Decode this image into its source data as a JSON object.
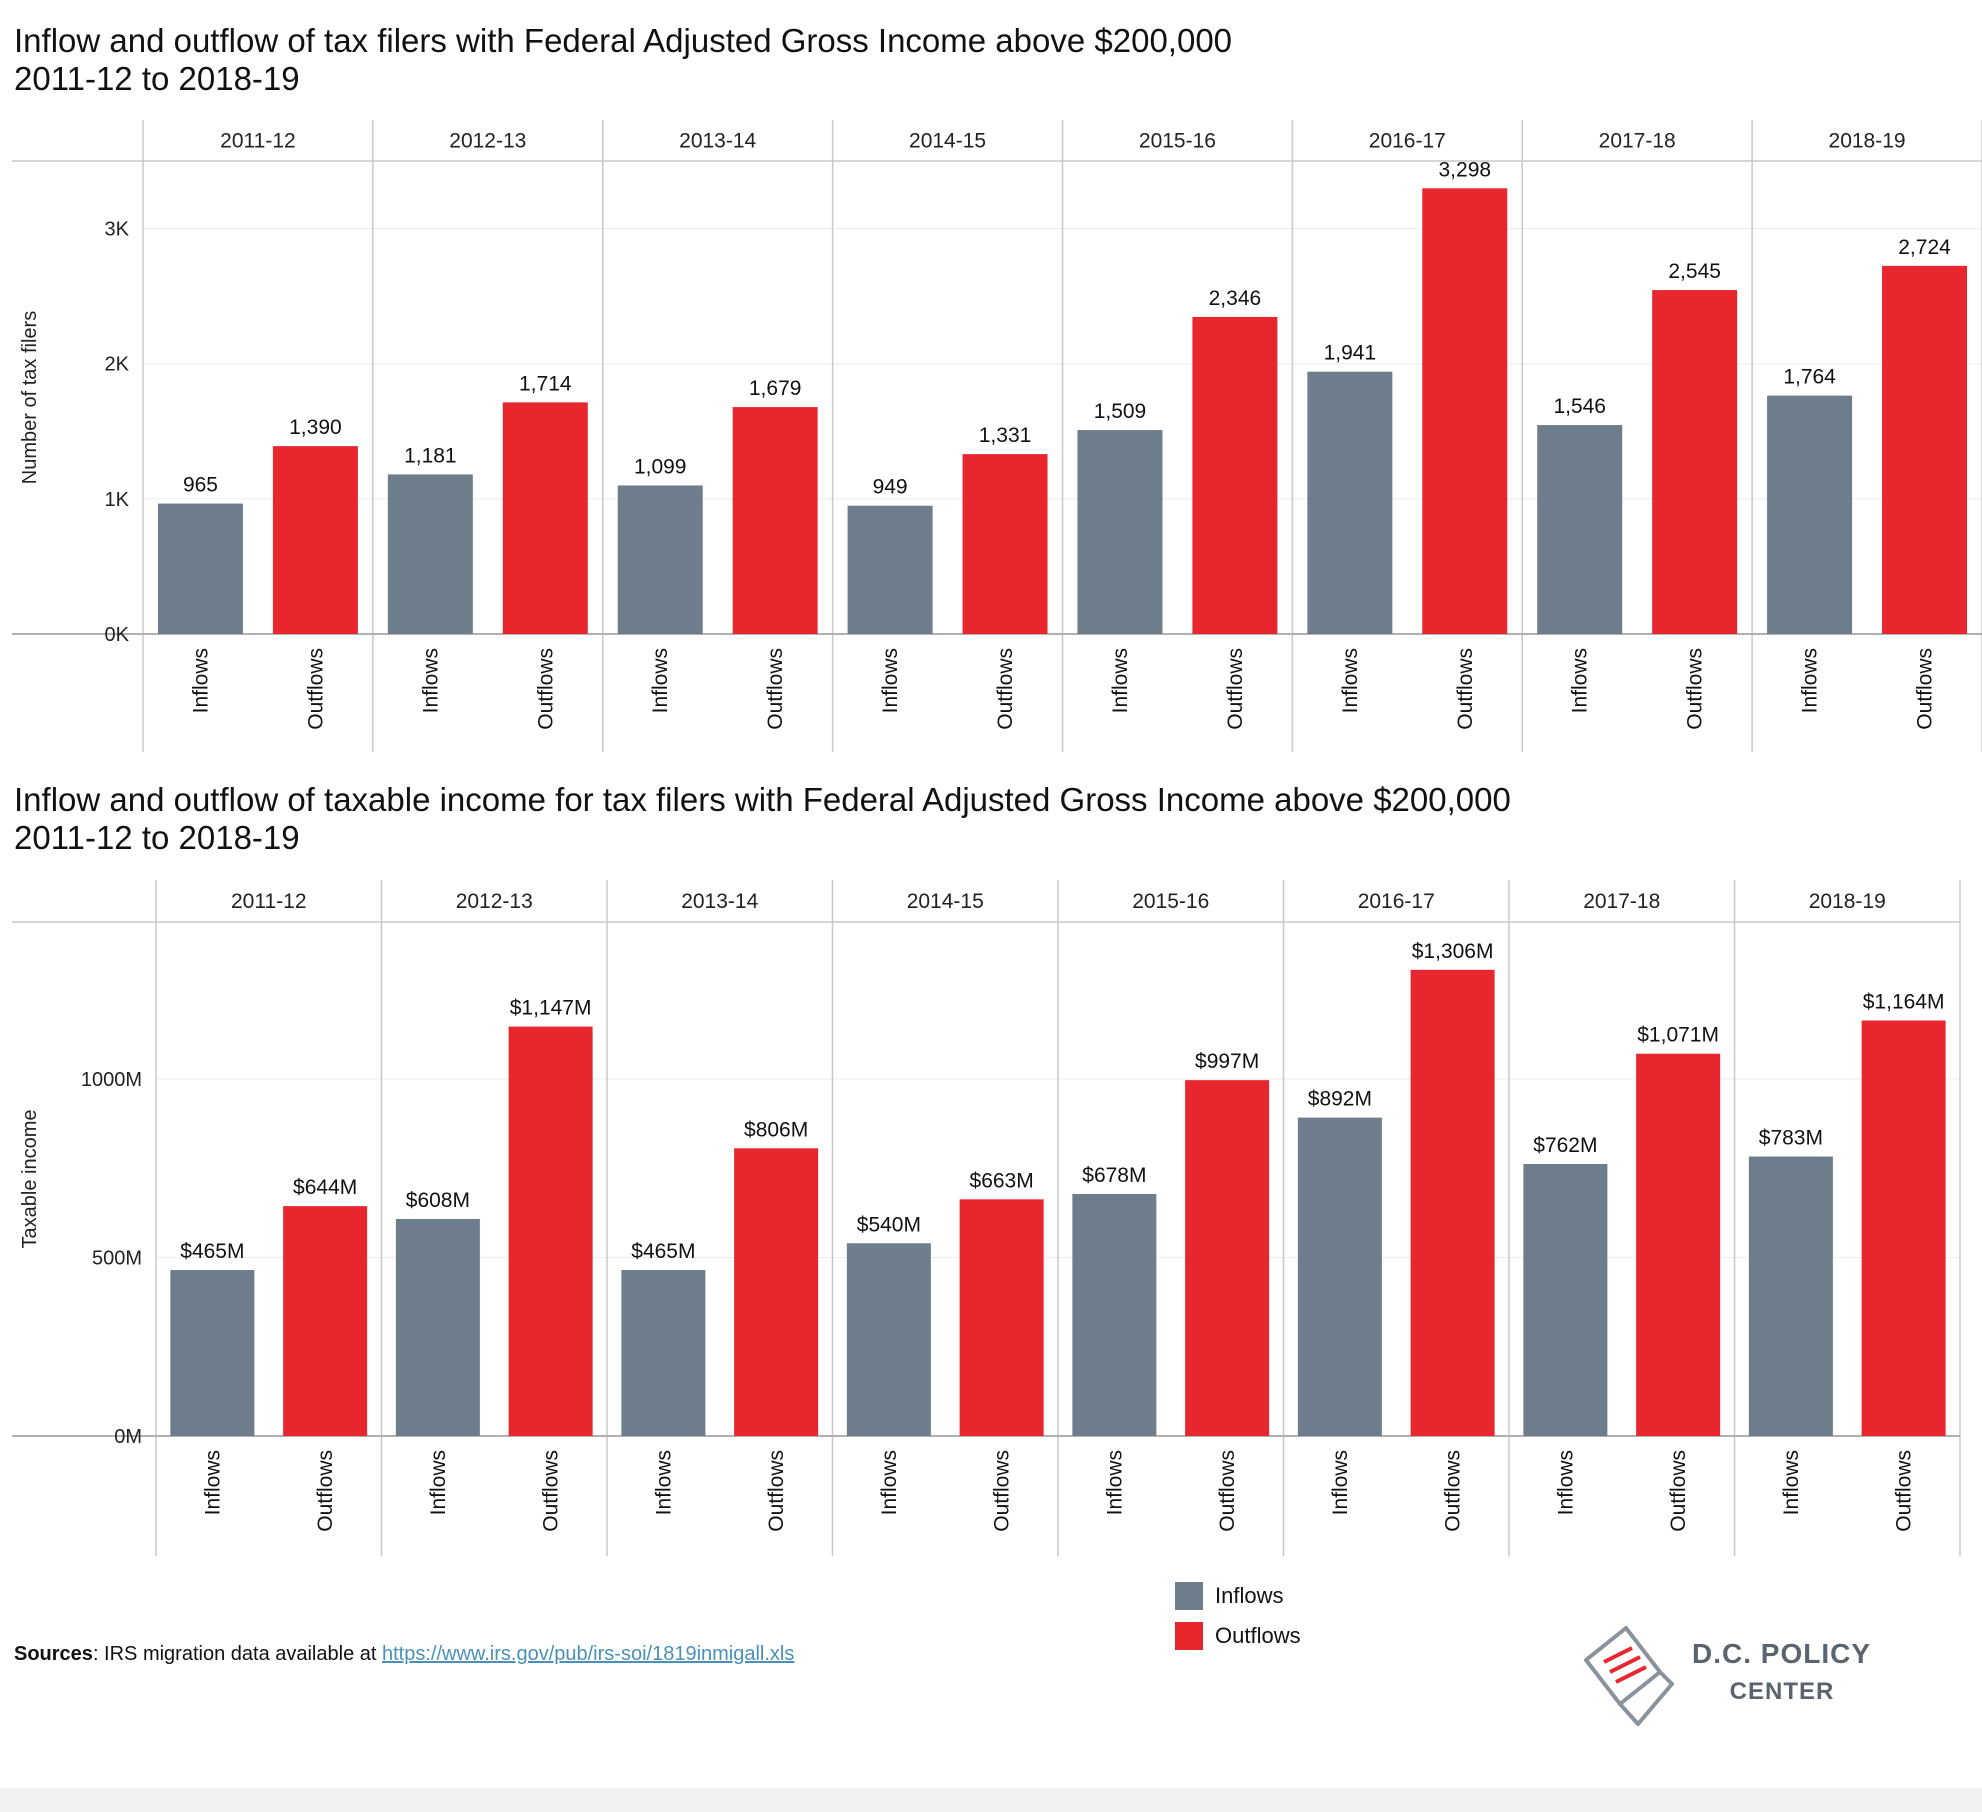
{
  "chart_data": [
    {
      "type": "bar",
      "title_line1": "Inflow and outflow of tax filers with Federal Adjusted Gross Income above $200,000",
      "title_line2": "2011-12 to 2018-19",
      "ylabel": "Number of tax filers",
      "ylim": [
        0,
        3500
      ],
      "yticks": [
        0,
        1000,
        2000,
        3000
      ],
      "ytick_labels": [
        "0K",
        "1K",
        "2K",
        "3K"
      ],
      "categories": [
        "2011-12",
        "2012-13",
        "2013-14",
        "2014-15",
        "2015-16",
        "2016-17",
        "2017-18",
        "2018-19"
      ],
      "bar_names": [
        "Inflows",
        "Outflows"
      ],
      "series": [
        {
          "name": "Inflows",
          "values": [
            965,
            1181,
            1099,
            949,
            1509,
            1941,
            1546,
            1764
          ],
          "labels": [
            "965",
            "1,181",
            "1,099",
            "949",
            "1,509",
            "1,941",
            "1,546",
            "1,764"
          ]
        },
        {
          "name": "Outflows",
          "values": [
            1390,
            1714,
            1679,
            1331,
            2346,
            3298,
            2545,
            2724
          ],
          "labels": [
            "1,390",
            "1,714",
            "1,679",
            "1,331",
            "2,346",
            "3,298",
            "2,545",
            "2,724"
          ]
        }
      ]
    },
    {
      "type": "bar",
      "title_line1": "Inflow and outflow of taxable income for tax filers with Federal Adjusted Gross Income above $200,000",
      "title_line2": "2011-12 to 2018-19",
      "ylabel": "Taxable income",
      "ylim": [
        0,
        1440
      ],
      "yticks": [
        0,
        500,
        1000
      ],
      "ytick_labels": [
        "0M",
        "500M",
        "1000M"
      ],
      "categories": [
        "2011-12",
        "2012-13",
        "2013-14",
        "2014-15",
        "2015-16",
        "2016-17",
        "2017-18",
        "2018-19"
      ],
      "bar_names": [
        "Inflows",
        "Outflows"
      ],
      "series": [
        {
          "name": "Inflows",
          "values": [
            465,
            608,
            465,
            540,
            678,
            892,
            762,
            783
          ],
          "labels": [
            "$465M",
            "$608M",
            "$465M",
            "$540M",
            "$678M",
            "$892M",
            "$762M",
            "$783M"
          ]
        },
        {
          "name": "Outflows",
          "values": [
            644,
            1147,
            806,
            663,
            997,
            1306,
            1071,
            1164
          ],
          "labels": [
            "$644M",
            "$1,147M",
            "$806M",
            "$663M",
            "$997M",
            "$1,306M",
            "$1,071M",
            "$1,164M"
          ]
        }
      ]
    }
  ],
  "colors": {
    "inflows": "#6e7d8c",
    "outflows": "#e8262d",
    "grid": "#ececec",
    "divider": "#c8c8c8",
    "axis": "#b0b0b0"
  },
  "legend": {
    "items": [
      {
        "label": "Inflows"
      },
      {
        "label": "Outflows"
      }
    ]
  },
  "sources": {
    "label": "Sources",
    "text": ": IRS migration data available at ",
    "link": "https://www.irs.gov/pub/irs-soi/1819inmigall.xls"
  },
  "logo": {
    "line1": "D.C. POLICY",
    "line2": "CENTER"
  }
}
